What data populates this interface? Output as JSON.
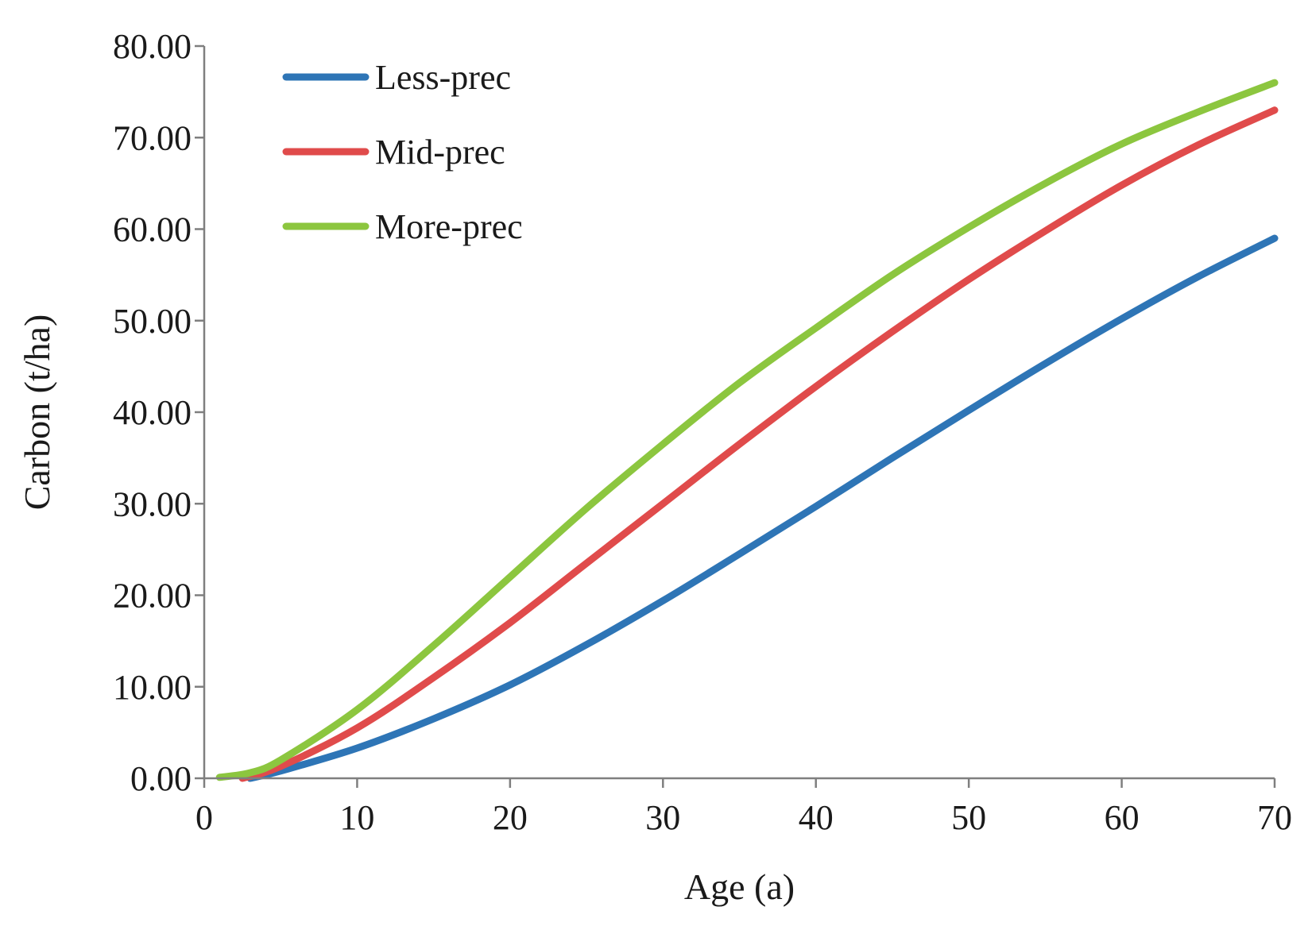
{
  "chart_data": {
    "type": "line",
    "xlabel": "Age (a)",
    "ylabel": "Carbon (t/ha)",
    "xlim": [
      0,
      70
    ],
    "ylim": [
      0,
      80
    ],
    "xticks": [
      "0",
      "10",
      "20",
      "30",
      "40",
      "50",
      "60",
      "70"
    ],
    "yticks": [
      "0.00",
      "10.00",
      "20.00",
      "30.00",
      "40.00",
      "50.00",
      "60.00",
      "70.00",
      "80.00"
    ],
    "grid": false,
    "legend_position": "top-left",
    "series": [
      {
        "name": "Less-prec",
        "color": "#2e75b6",
        "x": [
          3,
          5,
          10,
          15,
          20,
          25,
          30,
          35,
          40,
          45,
          50,
          55,
          60,
          65,
          70
        ],
        "y": [
          0.0,
          0.8,
          3.3,
          6.5,
          10.2,
          14.6,
          19.4,
          24.5,
          29.7,
          35.0,
          40.2,
          45.3,
          50.2,
          54.8,
          59.0
        ]
      },
      {
        "name": "Mid-prec",
        "color": "#e04b4b",
        "x": [
          2.5,
          5,
          10,
          15,
          20,
          25,
          30,
          35,
          40,
          45,
          50,
          55,
          60,
          65,
          70
        ],
        "y": [
          0.0,
          1.3,
          5.5,
          11.0,
          17.0,
          23.5,
          30.0,
          36.5,
          42.8,
          48.8,
          54.5,
          59.8,
          64.8,
          69.2,
          73.0
        ]
      },
      {
        "name": "More-prec",
        "color": "#8cc63f",
        "x": [
          1,
          3,
          5,
          10,
          15,
          20,
          25,
          30,
          35,
          40,
          45,
          50,
          55,
          60,
          65,
          70
        ],
        "y": [
          0.1,
          0.6,
          2.0,
          7.5,
          14.5,
          22.0,
          29.5,
          36.5,
          43.2,
          49.2,
          55.0,
          60.2,
          65.0,
          69.3,
          72.8,
          76.0
        ]
      }
    ]
  }
}
